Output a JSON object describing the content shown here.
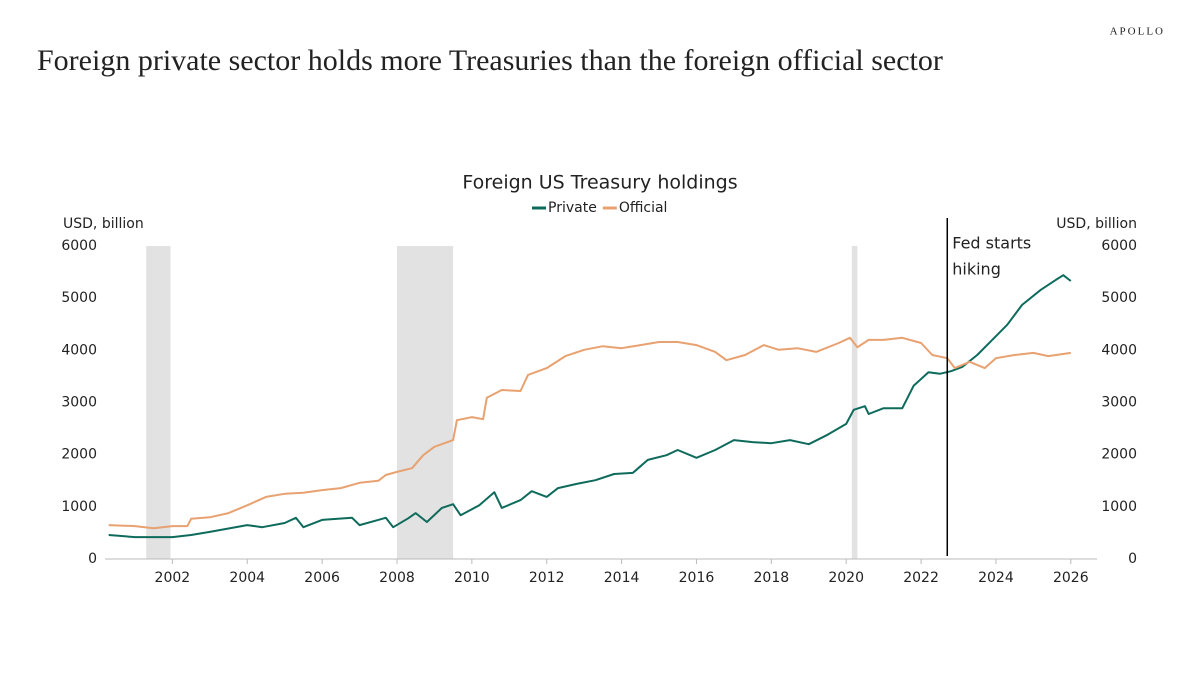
{
  "brand": "APOLLO",
  "headline": "Foreign private sector holds more Treasuries than the foreign official sector",
  "chart_data": {
    "type": "line",
    "title": "Foreign US Treasury holdings",
    "ylabel": "USD, billion",
    "y2label": "USD, billion",
    "xlim": [
      2000.2,
      2026.7
    ],
    "xticks": [
      2002,
      2004,
      2006,
      2008,
      2010,
      2012,
      2014,
      2016,
      2018,
      2020,
      2022,
      2024,
      2026
    ],
    "ylim": [
      0,
      6000
    ],
    "yticks": [
      0,
      1000,
      2000,
      3000,
      4000,
      5000,
      6000
    ],
    "y2lim": [
      0,
      6000
    ],
    "y2ticks": [
      0,
      1000,
      2000,
      3000,
      4000,
      5000,
      6000
    ],
    "shaded_periods": [
      [
        2001.3,
        2001.95
      ],
      [
        2008.0,
        2009.5
      ],
      [
        2020.15,
        2020.3
      ]
    ],
    "annotation": {
      "lines": [
        "Fed starts",
        "hiking"
      ],
      "x": 2022.7
    },
    "series": [
      {
        "name": "Private",
        "color": "#0e6b5c",
        "x": [
          2000.3,
          2001,
          2002,
          2002.5,
          2003,
          2004,
          2004.4,
          2005,
          2005.3,
          2005.5,
          2006,
          2006.8,
          2007,
          2007.7,
          2007.9,
          2008.3,
          2008.5,
          2008.8,
          2009.2,
          2009.5,
          2009.7,
          2010.2,
          2010.6,
          2010.8,
          2011.3,
          2011.6,
          2012,
          2012.3,
          2012.8,
          2013.3,
          2013.8,
          2014.3,
          2014.7,
          2015.2,
          2015.5,
          2016,
          2016.5,
          2017,
          2017.5,
          2018,
          2018.5,
          2019,
          2019.5,
          2020,
          2020.2,
          2020.5,
          2020.6,
          2021,
          2021.5,
          2021.8,
          2022.2,
          2022.5,
          2022.8,
          2023.1,
          2023.5,
          2023.9,
          2024.3,
          2024.7,
          2025.2,
          2025.6,
          2025.8,
          2026
        ],
        "values": [
          460,
          420,
          420,
          460,
          520,
          650,
          610,
          690,
          790,
          610,
          750,
          790,
          650,
          790,
          610,
          780,
          880,
          710,
          980,
          1050,
          840,
          1030,
          1280,
          980,
          1130,
          1300,
          1190,
          1360,
          1440,
          1510,
          1630,
          1650,
          1900,
          1990,
          2090,
          1940,
          2090,
          2280,
          2240,
          2220,
          2280,
          2200,
          2380,
          2590,
          2860,
          2930,
          2780,
          2890,
          2890,
          3320,
          3580,
          3550,
          3600,
          3680,
          3910,
          4200,
          4490,
          4870,
          5160,
          5350,
          5440,
          5330
        ]
      },
      {
        "name": "Official",
        "color": "#e8a170",
        "x": [
          2000.3,
          2001,
          2001.5,
          2002,
          2002.4,
          2002.5,
          2003,
          2003.5,
          2004,
          2004.5,
          2005,
          2005.5,
          2006,
          2006.5,
          2007,
          2007.5,
          2007.7,
          2008,
          2008.4,
          2008.7,
          2009,
          2009.5,
          2009.6,
          2010,
          2010.3,
          2010.4,
          2010.8,
          2011.3,
          2011.5,
          2012,
          2012.5,
          2013,
          2013.5,
          2014,
          2014.5,
          2015,
          2015.5,
          2016,
          2016.5,
          2016.8,
          2017.3,
          2017.8,
          2018.2,
          2018.7,
          2019.2,
          2019.8,
          2020.1,
          2020.3,
          2020.6,
          2021,
          2021.5,
          2022,
          2022.3,
          2022.7,
          2022.9,
          2023.3,
          2023.7,
          2024,
          2024.5,
          2025,
          2025.4,
          2026
        ],
        "values": [
          650,
          630,
          590,
          630,
          630,
          770,
          800,
          880,
          1030,
          1190,
          1250,
          1270,
          1320,
          1360,
          1460,
          1500,
          1610,
          1670,
          1740,
          1990,
          2150,
          2280,
          2660,
          2720,
          2680,
          3090,
          3240,
          3220,
          3530,
          3660,
          3890,
          4010,
          4080,
          4040,
          4100,
          4160,
          4160,
          4100,
          3970,
          3810,
          3910,
          4100,
          4010,
          4040,
          3970,
          4140,
          4240,
          4060,
          4200,
          4200,
          4240,
          4140,
          3910,
          3850,
          3660,
          3780,
          3660,
          3850,
          3910,
          3950,
          3890,
          3950
        ]
      }
    ]
  }
}
